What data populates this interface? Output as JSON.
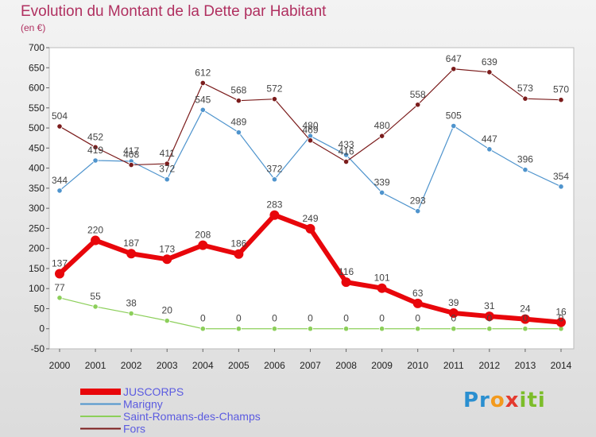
{
  "chart_data": {
    "type": "line",
    "title": "Evolution du Montant de la Dette par Habitant",
    "subtitle": "(en €)",
    "x": [
      "2000",
      "2001",
      "2002",
      "2003",
      "2004",
      "2005",
      "2006",
      "2007",
      "2008",
      "2009",
      "2010",
      "2011",
      "2012",
      "2013",
      "2014"
    ],
    "ylim": [
      -50,
      700
    ],
    "yticks": [
      -50,
      0,
      50,
      100,
      150,
      200,
      250,
      300,
      350,
      400,
      450,
      500,
      550,
      600,
      650,
      700
    ],
    "grid": false,
    "legend_position": "bottom-left",
    "series": [
      {
        "name": "JUSCORPS",
        "color": "#e8060b",
        "values": [
          137,
          220,
          187,
          173,
          208,
          186,
          283,
          249,
          116,
          101,
          63,
          39,
          31,
          24,
          16
        ]
      },
      {
        "name": "Marigny",
        "color": "#4f94cd",
        "values": [
          344,
          419,
          417,
          372,
          545,
          489,
          372,
          480,
          433,
          339,
          293,
          505,
          447,
          396,
          354
        ]
      },
      {
        "name": "Saint-Romans-des-Champs",
        "color": "#8ccf5a",
        "values": [
          77,
          55,
          38,
          20,
          0,
          0,
          0,
          0,
          0,
          0,
          0,
          0,
          0,
          0,
          0
        ]
      },
      {
        "name": "Fors",
        "color": "#7b1c1c",
        "values": [
          504,
          452,
          408,
          411,
          612,
          568,
          572,
          469,
          416,
          480,
          558,
          647,
          639,
          573,
          570
        ]
      }
    ]
  },
  "logo": {
    "p1": "Pr",
    "p2": "o",
    "p3": "x",
    "p4": "iti"
  }
}
